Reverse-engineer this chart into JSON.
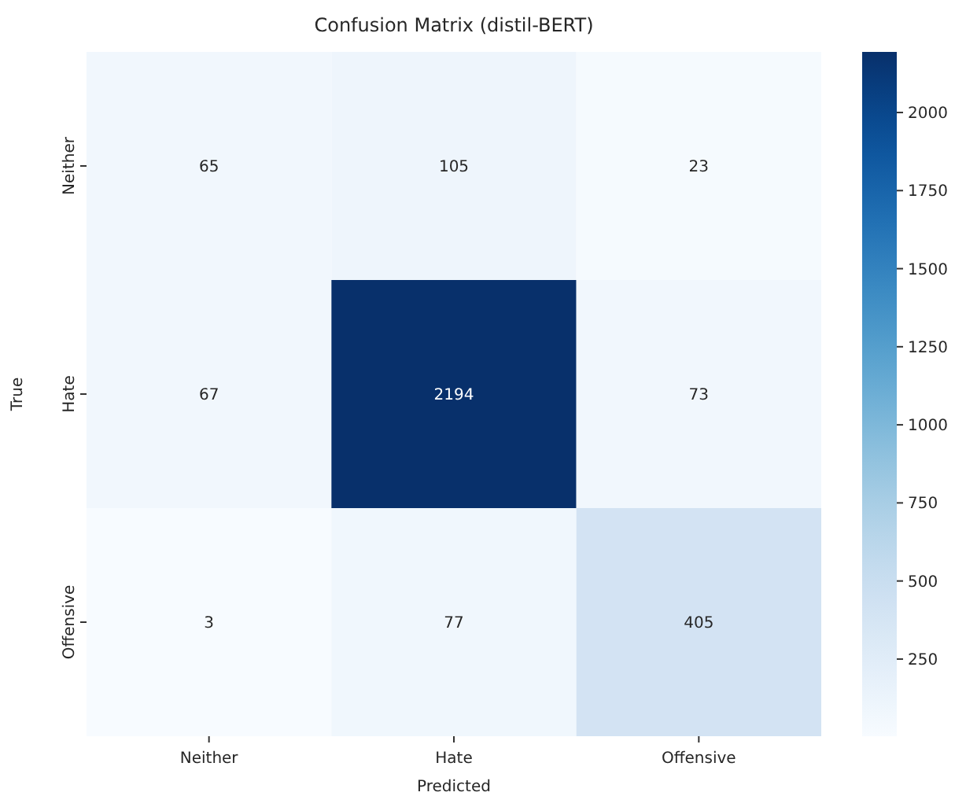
{
  "chart_data": {
    "type": "heatmap",
    "title": "Confusion Matrix (distil-BERT)",
    "xlabel": "Predicted",
    "ylabel": "True",
    "categories": [
      "Neither",
      "Hate",
      "Offensive"
    ],
    "y_categories": [
      "Neither",
      "Hate",
      "Offensive"
    ],
    "cells": [
      [
        65,
        105,
        23
      ],
      [
        67,
        2194,
        73
      ],
      [
        3,
        77,
        405
      ]
    ],
    "clim": [
      3,
      2194
    ],
    "cticks": [
      250,
      500,
      750,
      1000,
      1250,
      1500,
      1750,
      2000
    ],
    "data_labels": true
  }
}
